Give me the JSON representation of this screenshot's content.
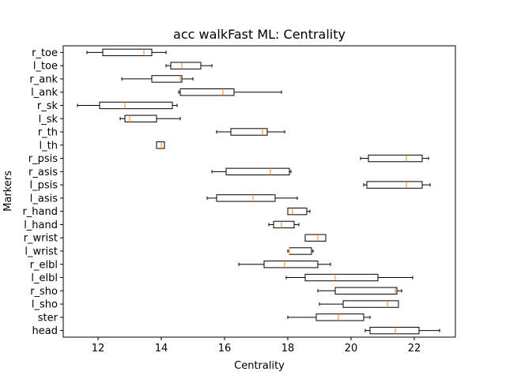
{
  "chart_data": {
    "type": "boxplot",
    "orientation": "horizontal",
    "title": "acc walkFast ML: Centrality",
    "xlabel": "Centrality",
    "ylabel": "Markers",
    "xlim": [
      10.9,
      23.3
    ],
    "xticks": [
      12,
      14,
      16,
      18,
      20,
      22
    ],
    "grid": false,
    "categories": [
      "head",
      "ster",
      "l_sho",
      "r_sho",
      "l_elbl",
      "r_elbl",
      "l_wrist",
      "r_wrist",
      "l_hand",
      "r_hand",
      "l_asis",
      "l_psis",
      "r_asis",
      "r_psis",
      "l_th",
      "r_th",
      "l_sk",
      "r_sk",
      "l_ank",
      "r_ank",
      "l_toe",
      "r_toe"
    ],
    "boxes": [
      {
        "label": "head",
        "whislo": 20.45,
        "q1": 20.6,
        "med": 21.4,
        "q3": 22.15,
        "whishi": 22.8
      },
      {
        "label": "ster",
        "whislo": 18.0,
        "q1": 18.9,
        "med": 19.6,
        "q3": 20.4,
        "whishi": 20.6
      },
      {
        "label": "l_sho",
        "whislo": 19.0,
        "q1": 19.75,
        "med": 21.15,
        "q3": 21.5,
        "whishi": 21.5
      },
      {
        "label": "r_sho",
        "whislo": 18.95,
        "q1": 19.5,
        "med": 21.4,
        "q3": 21.45,
        "whishi": 21.6
      },
      {
        "label": "l_elbl",
        "whislo": 17.95,
        "q1": 18.55,
        "med": 19.5,
        "q3": 20.85,
        "whishi": 21.95
      },
      {
        "label": "r_elbl",
        "whislo": 16.45,
        "q1": 17.25,
        "med": 17.9,
        "q3": 18.95,
        "whishi": 19.35
      },
      {
        "label": "l_wrist",
        "whislo": 18.0,
        "q1": 18.05,
        "med": 18.05,
        "q3": 18.75,
        "whishi": 18.8
      },
      {
        "label": "r_wrist",
        "whislo": 18.55,
        "q1": 18.55,
        "med": 18.95,
        "q3": 19.2,
        "whishi": 19.2
      },
      {
        "label": "l_hand",
        "whislo": 17.4,
        "q1": 17.55,
        "med": 17.8,
        "q3": 18.2,
        "whishi": 18.35
      },
      {
        "label": "r_hand",
        "whislo": 18.0,
        "q1": 18.0,
        "med": 18.15,
        "q3": 18.6,
        "whishi": 18.7
      },
      {
        "label": "l_asis",
        "whislo": 15.45,
        "q1": 15.75,
        "med": 16.9,
        "q3": 17.6,
        "whishi": 18.3
      },
      {
        "label": "l_psis",
        "whislo": 20.4,
        "q1": 20.5,
        "med": 21.75,
        "q3": 22.25,
        "whishi": 22.5
      },
      {
        "label": "r_asis",
        "whislo": 15.6,
        "q1": 16.05,
        "med": 17.45,
        "q3": 18.05,
        "whishi": 18.1
      },
      {
        "label": "r_psis",
        "whislo": 20.3,
        "q1": 20.55,
        "med": 21.75,
        "q3": 22.25,
        "whishi": 22.45
      },
      {
        "label": "l_th",
        "whislo": 13.85,
        "q1": 13.85,
        "med": 14.0,
        "q3": 14.1,
        "whishi": 14.1
      },
      {
        "label": "r_th",
        "whislo": 15.75,
        "q1": 16.2,
        "med": 17.2,
        "q3": 17.35,
        "whishi": 17.9
      },
      {
        "label": "l_sk",
        "whislo": 12.7,
        "q1": 12.85,
        "med": 13.0,
        "q3": 13.85,
        "whishi": 14.6
      },
      {
        "label": "r_sk",
        "whislo": 11.35,
        "q1": 12.05,
        "med": 12.85,
        "q3": 14.35,
        "whishi": 14.5
      },
      {
        "label": "l_ank",
        "whislo": 14.55,
        "q1": 14.6,
        "med": 15.95,
        "q3": 16.3,
        "whishi": 17.8
      },
      {
        "label": "r_ank",
        "whislo": 12.75,
        "q1": 13.7,
        "med": 14.6,
        "q3": 14.65,
        "whishi": 15.0
      },
      {
        "label": "l_toe",
        "whislo": 14.15,
        "q1": 14.3,
        "med": 14.65,
        "q3": 15.25,
        "whishi": 15.6
      },
      {
        "label": "r_toe",
        "whislo": 11.65,
        "q1": 12.15,
        "med": 13.45,
        "q3": 13.7,
        "whishi": 14.15
      }
    ],
    "colors": {
      "box": "#000000",
      "median": "#ff7f0e"
    }
  }
}
